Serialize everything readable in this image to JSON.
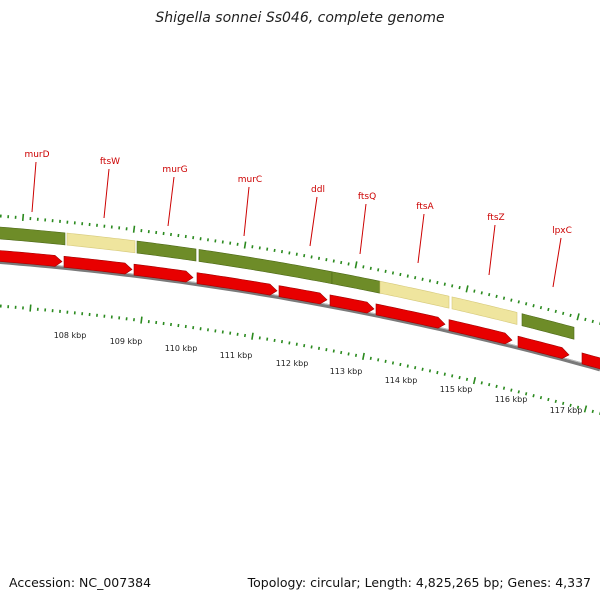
{
  "title": "Shigella sonnei Ss046, complete genome",
  "accession": "Accession: NC_007384",
  "summary": "Topology: circular; Length: 4,825,265 bp; Genes: 4,337",
  "colors": {
    "backbone": "#7a7a7a",
    "cds_forward": "#e80000",
    "gene_dark": "#6e8c28",
    "gene_light": "#efe59e",
    "label": "#cc0000",
    "tick": "#2a8a1e"
  },
  "gene_labels": [
    "murD",
    "ftsW",
    "murG",
    "murC",
    "ddl",
    "ftsQ",
    "ftsA",
    "ftsZ",
    "lpxC"
  ],
  "kbp_labels": [
    "108 kbp",
    "109 kbp",
    "110 kbp",
    "111 kbp",
    "112 kbp",
    "113 kbp",
    "114 kbp",
    "115 kbp",
    "116 kbp",
    "117 kbp"
  ]
}
